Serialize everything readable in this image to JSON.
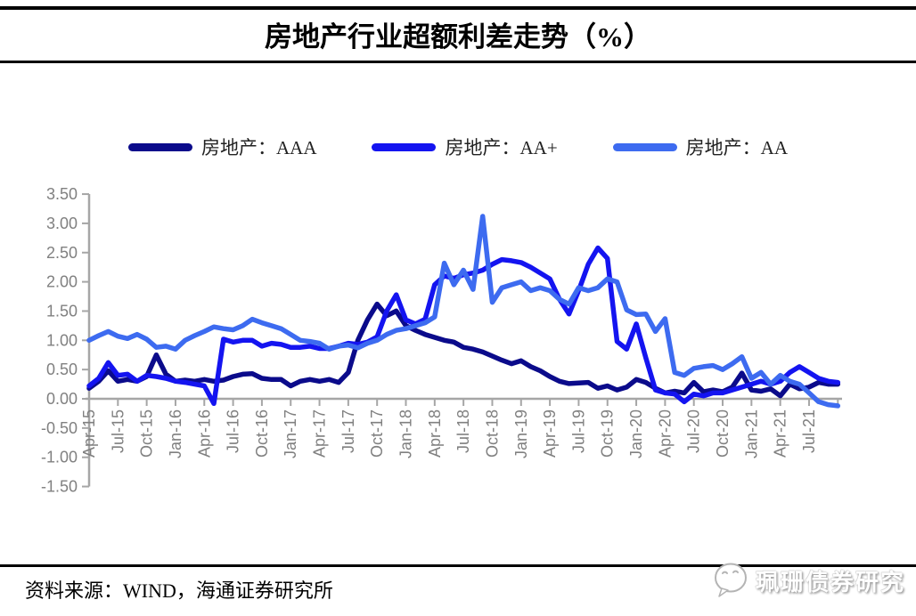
{
  "header": {
    "title": "房地产行业超额利差走势（%）"
  },
  "legend": [
    {
      "label": "房地产：AAA",
      "color": "#0b0b8b"
    },
    {
      "label": "房地产：AA+",
      "color": "#1414f0"
    },
    {
      "label": "房地产：AA",
      "color": "#3d6bf0"
    }
  ],
  "chart_data": {
    "type": "line",
    "title": "房地产行业超额利差走势（%）",
    "unit": "%",
    "grid": false,
    "legend_position": "top",
    "axis_color": "#a6a6a6",
    "label_color": "#808080",
    "ylim": [
      -1.5,
      3.5
    ],
    "y_tick_labels": [
      "3.50",
      "3.00",
      "2.50",
      "2.00",
      "1.50",
      "1.00",
      "0.50",
      "0.00",
      "-0.50",
      "-1.00",
      "-1.50"
    ],
    "x_tick_labels": [
      "Apr-15",
      "Jul-15",
      "Oct-15",
      "Jan-16",
      "Apr-16",
      "Jul-16",
      "Oct-16",
      "Jan-17",
      "Apr-17",
      "Jul-17",
      "Oct-17",
      "Jan-18",
      "Apr-18",
      "Jul-18",
      "Oct-18",
      "Jan-19",
      "Apr-19",
      "Jul-19",
      "Oct-19",
      "Jan-20",
      "Apr-20",
      "Jul-20",
      "Oct-20",
      "Jan-21",
      "Apr-21",
      "Jul-21"
    ],
    "x_frequency": "monthly data, one tick every 3 months starting Apr-2015",
    "series": [
      {
        "name": "房地产：AAA",
        "color": "#0b0b8b",
        "values": [
          0.18,
          0.3,
          0.48,
          0.3,
          0.33,
          0.3,
          0.38,
          0.75,
          0.42,
          0.3,
          0.32,
          0.3,
          0.33,
          0.3,
          0.32,
          0.38,
          0.42,
          0.43,
          0.35,
          0.33,
          0.33,
          0.22,
          0.3,
          0.33,
          0.3,
          0.33,
          0.28,
          0.45,
          1.0,
          1.35,
          1.62,
          1.42,
          1.5,
          1.25,
          1.17,
          1.1,
          1.05,
          1.0,
          0.97,
          0.88,
          0.85,
          0.8,
          0.73,
          0.66,
          0.6,
          0.65,
          0.55,
          0.48,
          0.38,
          0.3,
          0.26,
          0.27,
          0.28,
          0.18,
          0.22,
          0.15,
          0.2,
          0.33,
          0.28,
          0.18,
          0.1,
          0.13,
          0.1,
          0.28,
          0.12,
          0.15,
          0.12,
          0.2,
          0.44,
          0.15,
          0.13,
          0.17,
          0.05,
          0.25,
          0.17,
          0.2,
          0.28,
          0.25,
          0.25
        ]
      },
      {
        "name": "房地产：AA+",
        "color": "#1414f0",
        "values": [
          0.22,
          0.35,
          0.62,
          0.4,
          0.42,
          0.3,
          0.4,
          0.38,
          0.35,
          0.3,
          0.28,
          0.25,
          0.22,
          -0.08,
          1.02,
          0.97,
          1.0,
          1.0,
          0.9,
          0.95,
          0.93,
          0.88,
          0.88,
          0.9,
          0.86,
          0.86,
          0.9,
          0.95,
          0.93,
          0.97,
          1.06,
          1.5,
          1.78,
          1.35,
          1.28,
          1.36,
          1.95,
          2.1,
          2.06,
          2.12,
          2.15,
          2.2,
          2.3,
          2.38,
          2.36,
          2.33,
          2.25,
          2.15,
          2.05,
          1.7,
          1.45,
          1.85,
          2.3,
          2.58,
          2.4,
          0.98,
          0.85,
          1.28,
          0.7,
          0.15,
          0.1,
          0.08,
          -0.05,
          0.08,
          0.05,
          0.1,
          0.1,
          0.15,
          0.2,
          0.25,
          0.3,
          0.25,
          0.3,
          0.45,
          0.55,
          0.45,
          0.35,
          0.3,
          0.28
        ]
      },
      {
        "name": "房地产：AA",
        "color": "#3d6bf0",
        "values": [
          1.0,
          1.08,
          1.15,
          1.07,
          1.03,
          1.1,
          1.02,
          0.88,
          0.9,
          0.85,
          1.0,
          1.08,
          1.15,
          1.23,
          1.2,
          1.18,
          1.25,
          1.36,
          1.3,
          1.25,
          1.2,
          1.1,
          1.0,
          0.98,
          0.95,
          0.85,
          0.9,
          0.92,
          0.87,
          0.95,
          1.0,
          1.1,
          1.17,
          1.2,
          1.25,
          1.3,
          1.4,
          2.32,
          1.95,
          2.2,
          1.87,
          3.12,
          1.65,
          1.9,
          1.95,
          2.0,
          1.85,
          1.9,
          1.85,
          1.7,
          1.62,
          1.9,
          1.85,
          1.9,
          2.05,
          2.0,
          1.52,
          1.44,
          1.45,
          1.15,
          1.37,
          0.45,
          0.4,
          0.52,
          0.55,
          0.57,
          0.5,
          0.6,
          0.72,
          0.35,
          0.45,
          0.25,
          0.4,
          0.3,
          0.25,
          0.1,
          -0.05,
          -0.1,
          -0.12
        ]
      }
    ]
  },
  "footer": {
    "source": "资料来源：WIND，海通证券研究所"
  },
  "watermark": {
    "icon": "wechat-icon",
    "text": "珮珊债券研究"
  }
}
